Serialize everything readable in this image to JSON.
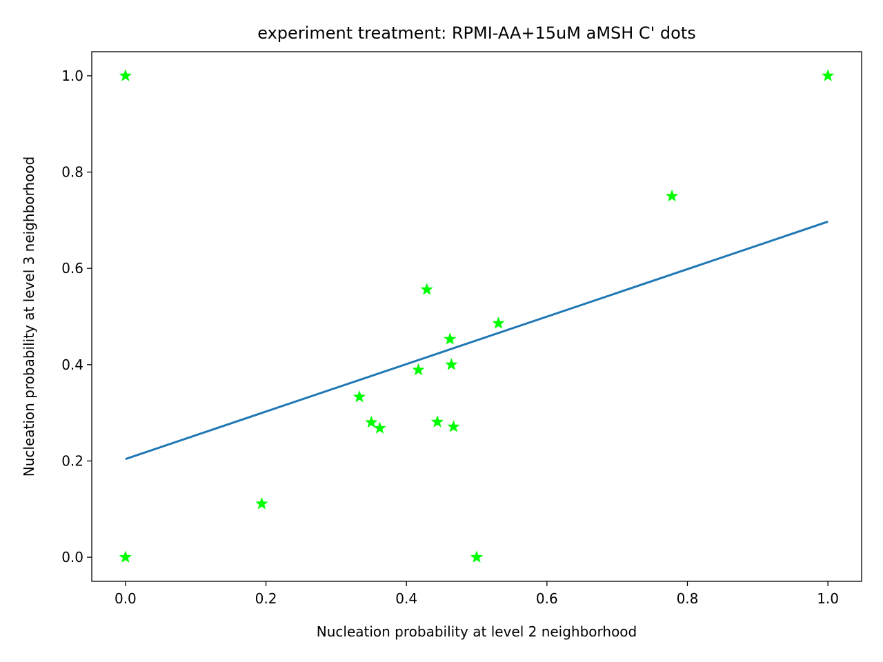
{
  "chart_data": {
    "type": "scatter",
    "title": "experiment treatment: RPMI-AA+15uM aMSH C' dots",
    "xlabel": "Nucleation probability at level 2 neighborhood",
    "ylabel": "Nucleation probability at level 3 neighborhood",
    "xlim": [
      -0.048,
      1.048
    ],
    "ylim": [
      -0.05,
      1.05
    ],
    "xticks": [
      0.0,
      0.2,
      0.4,
      0.6,
      0.8,
      1.0
    ],
    "yticks": [
      0.0,
      0.2,
      0.4,
      0.6,
      0.8,
      1.0
    ],
    "xtick_labels": [
      "0.0",
      "0.2",
      "0.4",
      "0.6",
      "0.8",
      "1.0"
    ],
    "ytick_labels": [
      "0.0",
      "0.2",
      "0.4",
      "0.6",
      "0.8",
      "1.0"
    ],
    "grid": false,
    "series": [
      {
        "kind": "scatter",
        "marker": "star",
        "color": "#00ff00",
        "points": [
          {
            "x": 0.0,
            "y": 1.0
          },
          {
            "x": 0.0,
            "y": 0.0
          },
          {
            "x": 0.194,
            "y": 0.111
          },
          {
            "x": 0.333,
            "y": 0.333
          },
          {
            "x": 0.35,
            "y": 0.28
          },
          {
            "x": 0.362,
            "y": 0.268
          },
          {
            "x": 0.417,
            "y": 0.389
          },
          {
            "x": 0.429,
            "y": 0.556
          },
          {
            "x": 0.444,
            "y": 0.281
          },
          {
            "x": 0.462,
            "y": 0.453
          },
          {
            "x": 0.464,
            "y": 0.4
          },
          {
            "x": 0.467,
            "y": 0.271
          },
          {
            "x": 0.5,
            "y": 0.0
          },
          {
            "x": 0.531,
            "y": 0.486
          },
          {
            "x": 0.778,
            "y": 0.75
          },
          {
            "x": 1.0,
            "y": 1.0
          }
        ]
      },
      {
        "kind": "line",
        "color": "#1f77b4",
        "points": [
          {
            "x": 0.0,
            "y": 0.204
          },
          {
            "x": 1.0,
            "y": 0.697
          }
        ]
      }
    ]
  }
}
